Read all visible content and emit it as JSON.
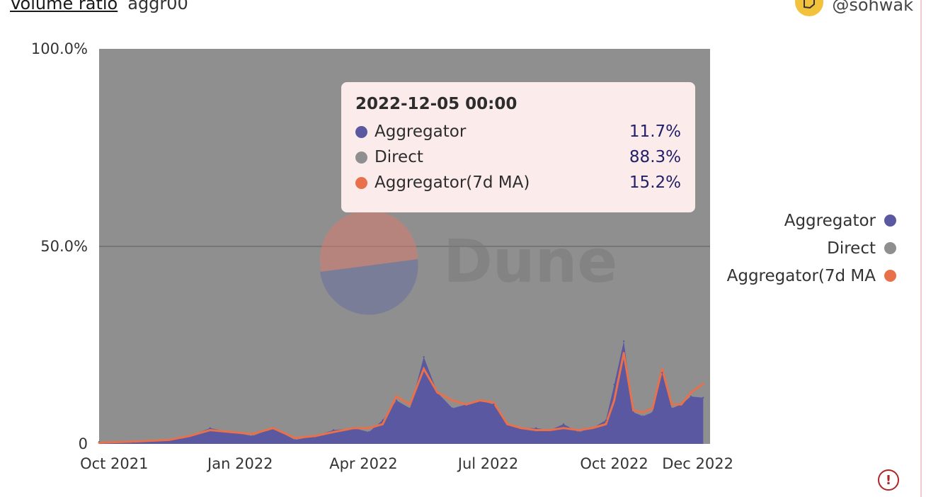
{
  "header": {
    "title": "Volume ratio",
    "subtitle": "aggr00",
    "author": "@sohwak"
  },
  "watermark": "Dune",
  "colors": {
    "aggregator": "#5a58a0",
    "direct": "#8f8f8f",
    "ma": "#e8714b",
    "tooltip_bg": "#fbeceb",
    "value_text": "#23206b"
  },
  "icons": {
    "avatar": "avatar-icon",
    "alert": "alert-icon"
  },
  "tooltip": {
    "time": "2022-12-05 00:00",
    "rows": [
      {
        "label": "Aggregator",
        "value": "11.7%",
        "color": "#5a58a0"
      },
      {
        "label": "Direct",
        "value": "88.3%",
        "color": "#8f8f8f"
      },
      {
        "label": "Aggregator(7d MA)",
        "value": "15.2%",
        "color": "#e8714b"
      }
    ]
  },
  "legend": [
    {
      "label": "Aggregator",
      "color": "#5a58a0"
    },
    {
      "label": "Direct",
      "color": "#8f8f8f"
    },
    {
      "label": "Aggregator(7d MA",
      "color": "#e8714b"
    }
  ],
  "chart_data": {
    "type": "area",
    "stacked_percent": true,
    "grid": true,
    "legend_position": "right",
    "x_range": [
      "2021-09-20",
      "2022-12-10"
    ],
    "y_range": [
      0,
      100
    ],
    "y_ticks": [
      {
        "value": 0,
        "label": "0"
      },
      {
        "value": 50,
        "label": "50.0%"
      },
      {
        "value": 100,
        "label": "100.0%"
      }
    ],
    "x_ticks": [
      {
        "date": "2021-10-01",
        "label": "Oct 2021"
      },
      {
        "date": "2022-01-01",
        "label": "Jan 2022"
      },
      {
        "date": "2022-04-01",
        "label": "Apr 2022"
      },
      {
        "date": "2022-07-01",
        "label": "Jul 2022"
      },
      {
        "date": "2022-10-01",
        "label": "Oct 2022"
      },
      {
        "date": "2022-12-01",
        "label": "Dec 2022"
      }
    ],
    "series": [
      {
        "name": "Aggregator",
        "x": [
          "2021-09-20",
          "2021-10-15",
          "2021-11-10",
          "2021-11-25",
          "2021-12-10",
          "2021-12-25",
          "2022-01-10",
          "2022-01-25",
          "2022-02-10",
          "2022-02-25",
          "2022-03-10",
          "2022-03-25",
          "2022-04-05",
          "2022-04-15",
          "2022-04-25",
          "2022-05-05",
          "2022-05-15",
          "2022-05-25",
          "2022-06-05",
          "2022-06-15",
          "2022-06-25",
          "2022-07-05",
          "2022-07-15",
          "2022-07-25",
          "2022-08-05",
          "2022-08-15",
          "2022-08-25",
          "2022-09-05",
          "2022-09-15",
          "2022-09-25",
          "2022-10-01",
          "2022-10-08",
          "2022-10-15",
          "2022-10-22",
          "2022-10-29",
          "2022-11-05",
          "2022-11-12",
          "2022-11-19",
          "2022-11-26",
          "2022-12-05"
        ],
        "y": [
          0.5,
          0.4,
          1.0,
          2.0,
          4.0,
          3.0,
          2.0,
          4.0,
          1.0,
          2.0,
          3.5,
          4.0,
          3.0,
          6.0,
          11.0,
          9.0,
          22.0,
          13.0,
          9.0,
          10.0,
          11.0,
          10.0,
          5.0,
          4.0,
          4.0,
          3.5,
          5.0,
          3.0,
          4.0,
          6.0,
          15.0,
          26.0,
          8.0,
          7.0,
          8.0,
          18.0,
          9.0,
          10.0,
          12.0,
          11.7
        ]
      },
      {
        "name": "Direct",
        "y": "100 minus Aggregator"
      },
      {
        "name": "Aggregator(7d MA)",
        "x": [
          "2021-09-20",
          "2021-10-15",
          "2021-11-10",
          "2021-11-25",
          "2021-12-10",
          "2021-12-25",
          "2022-01-10",
          "2022-01-25",
          "2022-02-10",
          "2022-02-25",
          "2022-03-10",
          "2022-03-25",
          "2022-04-05",
          "2022-04-15",
          "2022-04-25",
          "2022-05-05",
          "2022-05-15",
          "2022-05-25",
          "2022-06-05",
          "2022-06-15",
          "2022-06-25",
          "2022-07-05",
          "2022-07-15",
          "2022-07-25",
          "2022-08-05",
          "2022-08-15",
          "2022-08-25",
          "2022-09-05",
          "2022-09-15",
          "2022-09-25",
          "2022-10-01",
          "2022-10-08",
          "2022-10-15",
          "2022-10-22",
          "2022-10-29",
          "2022-11-05",
          "2022-11-12",
          "2022-11-19",
          "2022-11-26",
          "2022-12-05"
        ],
        "y": [
          0.3,
          0.6,
          1.0,
          2.0,
          3.5,
          3.0,
          2.5,
          4.0,
          1.5,
          2.0,
          3.0,
          4.0,
          4.0,
          5.0,
          12.0,
          10.0,
          19.0,
          13.0,
          11.0,
          10.0,
          11.0,
          10.5,
          5.0,
          4.0,
          3.5,
          3.5,
          4.0,
          3.5,
          4.0,
          5.0,
          11.0,
          23.0,
          8.5,
          8.0,
          9.0,
          19.0,
          10.0,
          10.0,
          13.0,
          15.2
        ]
      }
    ]
  }
}
